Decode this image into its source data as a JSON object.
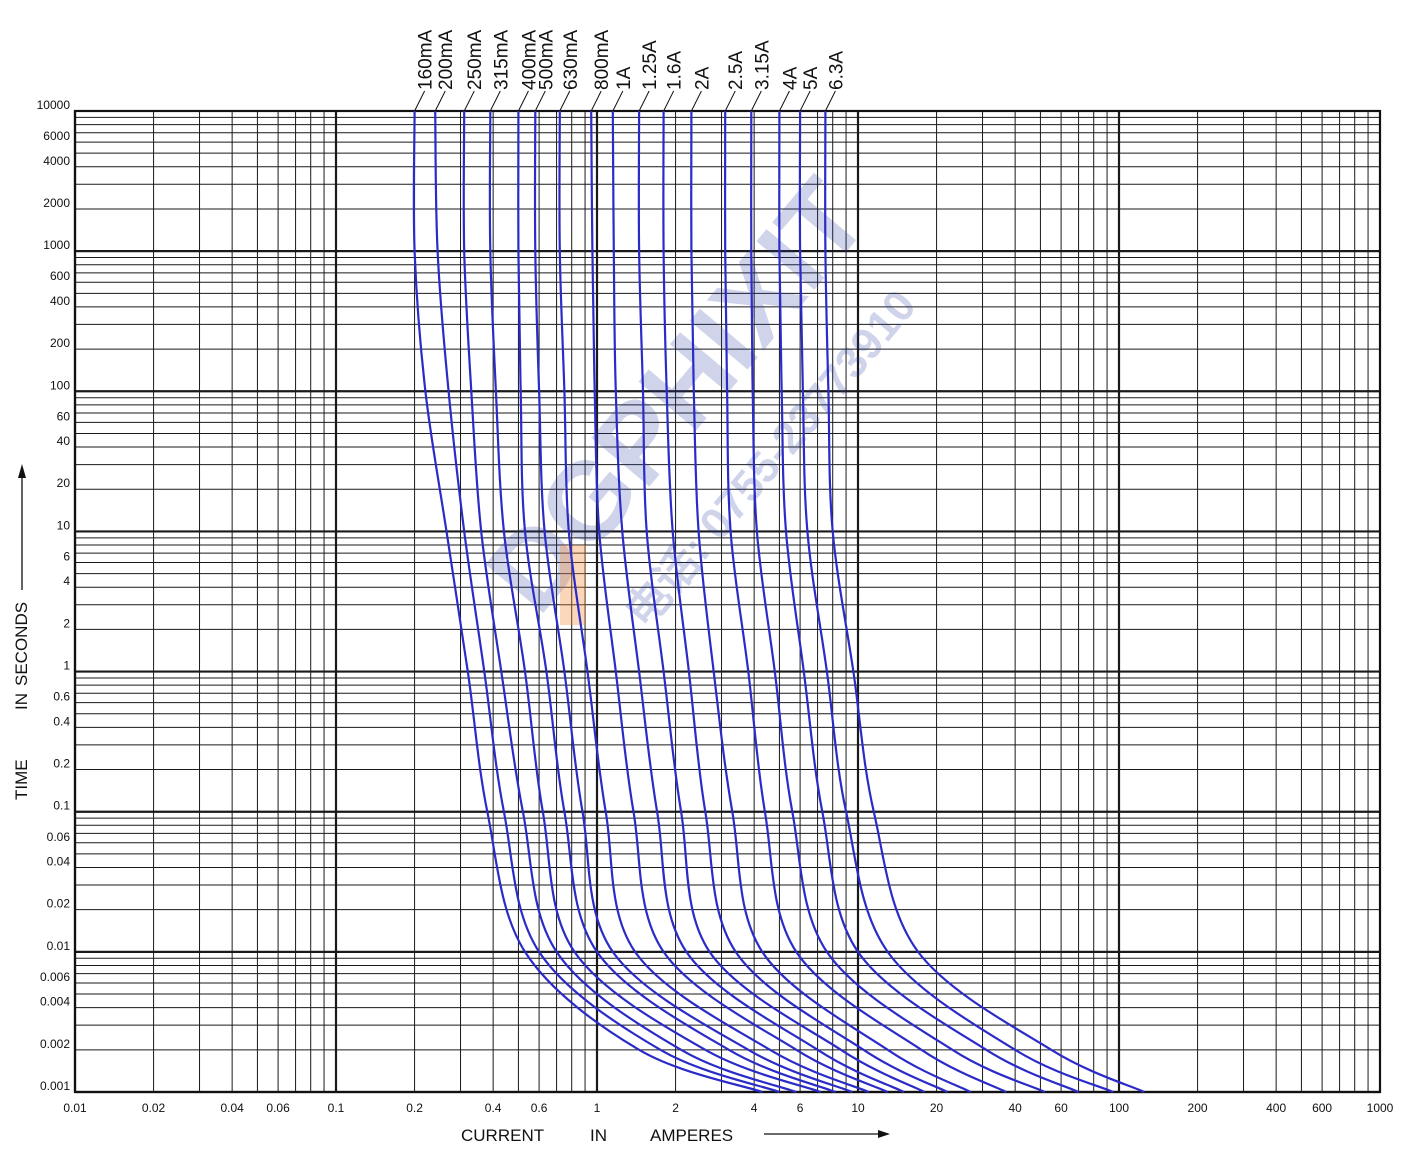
{
  "chart_data": {
    "type": "line",
    "title": "",
    "xlabel": {
      "parts": [
        "CURRENT",
        "IN",
        "AMPERES"
      ]
    },
    "ylabel": {
      "parts": [
        "TIME",
        "IN",
        "SECONDS"
      ]
    },
    "x_scale": "log",
    "y_scale": "log",
    "xlim": [
      0.01,
      1000
    ],
    "ylim": [
      0.001,
      10000
    ],
    "x_ticks": [
      {
        "v": 0.01,
        "t": "0.01"
      },
      {
        "v": 0.02,
        "t": "0.02"
      },
      {
        "v": 0.04,
        "t": "0.04"
      },
      {
        "v": 0.06,
        "t": "0.06"
      },
      {
        "v": 0.1,
        "t": "0.1"
      },
      {
        "v": 0.2,
        "t": "0.2"
      },
      {
        "v": 0.4,
        "t": "0.4"
      },
      {
        "v": 0.6,
        "t": "0.6"
      },
      {
        "v": 1,
        "t": "1"
      },
      {
        "v": 2,
        "t": "2"
      },
      {
        "v": 4,
        "t": "4"
      },
      {
        "v": 6,
        "t": "6"
      },
      {
        "v": 10,
        "t": "10"
      },
      {
        "v": 20,
        "t": "20"
      },
      {
        "v": 40,
        "t": "40"
      },
      {
        "v": 60,
        "t": "60"
      },
      {
        "v": 100,
        "t": "100"
      },
      {
        "v": 200,
        "t": "200"
      },
      {
        "v": 400,
        "t": "400"
      },
      {
        "v": 600,
        "t": "600"
      },
      {
        "v": 1000,
        "t": "1000"
      }
    ],
    "y_ticks": [
      {
        "v": 10000,
        "t": "10000"
      },
      {
        "v": 6000,
        "t": "6000"
      },
      {
        "v": 4000,
        "t": "4000"
      },
      {
        "v": 2000,
        "t": "2000"
      },
      {
        "v": 1000,
        "t": "1000"
      },
      {
        "v": 600,
        "t": "600"
      },
      {
        "v": 400,
        "t": "400"
      },
      {
        "v": 200,
        "t": "200"
      },
      {
        "v": 100,
        "t": "100"
      },
      {
        "v": 60,
        "t": "60"
      },
      {
        "v": 40,
        "t": "40"
      },
      {
        "v": 20,
        "t": "20"
      },
      {
        "v": 10,
        "t": "10"
      },
      {
        "v": 6,
        "t": "6"
      },
      {
        "v": 4,
        "t": "4"
      },
      {
        "v": 2,
        "t": "2"
      },
      {
        "v": 1,
        "t": "1"
      },
      {
        "v": 0.6,
        "t": "0.6"
      },
      {
        "v": 0.4,
        "t": "0.4"
      },
      {
        "v": 0.2,
        "t": "0.2"
      },
      {
        "v": 0.1,
        "t": "0.1"
      },
      {
        "v": 0.06,
        "t": "0.06"
      },
      {
        "v": 0.04,
        "t": "0.04"
      },
      {
        "v": 0.02,
        "t": "0.02"
      },
      {
        "v": 0.01,
        "t": "0.01"
      },
      {
        "v": 0.006,
        "t": "0.006"
      },
      {
        "v": 0.004,
        "t": "0.004"
      },
      {
        "v": 0.002,
        "t": "0.002"
      },
      {
        "v": 0.001,
        "t": "0.001"
      }
    ],
    "grid": true,
    "line_color": "#2b2bc8",
    "series": [
      {
        "name": "160mA",
        "points": [
          [
            0.2,
            10000
          ],
          [
            0.2,
            1000
          ],
          [
            0.22,
            100
          ],
          [
            0.265,
            10
          ],
          [
            0.32,
            1
          ],
          [
            0.38,
            0.1
          ],
          [
            0.53,
            0.01
          ],
          [
            1.45,
            0.002
          ],
          [
            4.3,
            0.001
          ]
        ]
      },
      {
        "name": "200mA",
        "points": [
          [
            0.24,
            10000
          ],
          [
            0.245,
            1000
          ],
          [
            0.27,
            100
          ],
          [
            0.31,
            10
          ],
          [
            0.37,
            1
          ],
          [
            0.44,
            0.1
          ],
          [
            0.6,
            0.01
          ],
          [
            1.75,
            0.002
          ],
          [
            5.0,
            0.001
          ]
        ]
      },
      {
        "name": "250mA",
        "points": [
          [
            0.31,
            10000
          ],
          [
            0.31,
            1000
          ],
          [
            0.33,
            100
          ],
          [
            0.36,
            10
          ],
          [
            0.43,
            1
          ],
          [
            0.52,
            0.1
          ],
          [
            0.7,
            0.01
          ],
          [
            2.1,
            0.002
          ],
          [
            5.8,
            0.001
          ]
        ]
      },
      {
        "name": "315mA",
        "points": [
          [
            0.39,
            10000
          ],
          [
            0.39,
            1000
          ],
          [
            0.41,
            100
          ],
          [
            0.44,
            10
          ],
          [
            0.53,
            1
          ],
          [
            0.62,
            0.1
          ],
          [
            0.82,
            0.01
          ],
          [
            2.6,
            0.002
          ],
          [
            7.2,
            0.001
          ]
        ]
      },
      {
        "name": "400mA",
        "points": [
          [
            0.5,
            10000
          ],
          [
            0.5,
            1000
          ],
          [
            0.51,
            100
          ],
          [
            0.53,
            10
          ],
          [
            0.64,
            1
          ],
          [
            0.75,
            0.1
          ],
          [
            1.0,
            0.01
          ],
          [
            3.2,
            0.002
          ],
          [
            8.2,
            0.001
          ]
        ]
      },
      {
        "name": "500mA",
        "points": [
          [
            0.58,
            10000
          ],
          [
            0.58,
            1000
          ],
          [
            0.6,
            100
          ],
          [
            0.63,
            10
          ],
          [
            0.75,
            1
          ],
          [
            0.88,
            0.1
          ],
          [
            1.15,
            0.01
          ],
          [
            3.8,
            0.002
          ],
          [
            9.5,
            0.001
          ]
        ]
      },
      {
        "name": "630mA",
        "points": [
          [
            0.72,
            10000
          ],
          [
            0.72,
            1000
          ],
          [
            0.75,
            100
          ],
          [
            0.78,
            10
          ],
          [
            0.92,
            1
          ],
          [
            1.08,
            0.1
          ],
          [
            1.4,
            0.01
          ],
          [
            4.6,
            0.002
          ],
          [
            11,
            0.001
          ]
        ]
      },
      {
        "name": "800mA",
        "points": [
          [
            0.95,
            10000
          ],
          [
            0.96,
            1000
          ],
          [
            0.98,
            100
          ],
          [
            1.02,
            10
          ],
          [
            1.18,
            1
          ],
          [
            1.38,
            0.1
          ],
          [
            1.8,
            0.01
          ],
          [
            5.8,
            0.002
          ],
          [
            13,
            0.001
          ]
        ]
      },
      {
        "name": "1A",
        "points": [
          [
            1.15,
            10000
          ],
          [
            1.16,
            1000
          ],
          [
            1.18,
            100
          ],
          [
            1.25,
            10
          ],
          [
            1.45,
            1
          ],
          [
            1.7,
            0.1
          ],
          [
            2.2,
            0.01
          ],
          [
            7.0,
            0.002
          ],
          [
            15,
            0.001
          ]
        ]
      },
      {
        "name": "1.25A",
        "points": [
          [
            1.45,
            10000
          ],
          [
            1.45,
            1000
          ],
          [
            1.5,
            100
          ],
          [
            1.55,
            10
          ],
          [
            1.8,
            1
          ],
          [
            2.1,
            0.1
          ],
          [
            2.7,
            0.01
          ],
          [
            8.6,
            0.002
          ],
          [
            18,
            0.001
          ]
        ]
      },
      {
        "name": "1.6A",
        "points": [
          [
            1.8,
            10000
          ],
          [
            1.8,
            1000
          ],
          [
            1.85,
            100
          ],
          [
            1.95,
            10
          ],
          [
            2.25,
            1
          ],
          [
            2.6,
            0.1
          ],
          [
            3.4,
            0.01
          ],
          [
            10.5,
            0.002
          ],
          [
            22,
            0.001
          ]
        ]
      },
      {
        "name": "2A",
        "points": [
          [
            2.3,
            10000
          ],
          [
            2.3,
            1000
          ],
          [
            2.35,
            100
          ],
          [
            2.45,
            10
          ],
          [
            2.8,
            1
          ],
          [
            3.3,
            0.1
          ],
          [
            4.3,
            0.01
          ],
          [
            13,
            0.002
          ],
          [
            27,
            0.001
          ]
        ]
      },
      {
        "name": "2.5A",
        "points": [
          [
            3.1,
            10000
          ],
          [
            3.1,
            1000
          ],
          [
            3.15,
            100
          ],
          [
            3.25,
            10
          ],
          [
            3.8,
            1
          ],
          [
            4.4,
            0.1
          ],
          [
            5.8,
            0.01
          ],
          [
            17.5,
            0.002
          ],
          [
            37,
            0.001
          ]
        ]
      },
      {
        "name": "3.15A",
        "points": [
          [
            3.9,
            10000
          ],
          [
            3.9,
            1000
          ],
          [
            3.95,
            100
          ],
          [
            4.1,
            10
          ],
          [
            4.8,
            1
          ],
          [
            5.6,
            0.1
          ],
          [
            7.6,
            0.01
          ],
          [
            23,
            0.002
          ],
          [
            52,
            0.001
          ]
        ]
      },
      {
        "name": "4A",
        "points": [
          [
            5.0,
            10000
          ],
          [
            5.0,
            1000
          ],
          [
            5.1,
            100
          ],
          [
            5.3,
            10
          ],
          [
            6.2,
            1
          ],
          [
            7.3,
            0.1
          ],
          [
            10,
            0.01
          ],
          [
            31,
            0.002
          ],
          [
            70,
            0.001
          ]
        ]
      },
      {
        "name": "5A",
        "points": [
          [
            6.0,
            10000
          ],
          [
            6.0,
            1000
          ],
          [
            6.15,
            100
          ],
          [
            6.4,
            10
          ],
          [
            7.6,
            1
          ],
          [
            9.0,
            0.1
          ],
          [
            13,
            0.01
          ],
          [
            40,
            0.002
          ],
          [
            95,
            0.001
          ]
        ]
      },
      {
        "name": "6.3A",
        "points": [
          [
            7.5,
            10000
          ],
          [
            7.5,
            1000
          ],
          [
            7.7,
            100
          ],
          [
            8.0,
            10
          ],
          [
            9.6,
            1
          ],
          [
            11.5,
            0.1
          ],
          [
            17,
            0.01
          ],
          [
            55,
            0.002
          ],
          [
            125,
            0.001
          ]
        ]
      }
    ]
  },
  "watermark": {
    "text": "DGPHIXIT",
    "phone": "电话: 0755-23773910",
    "color": "#2d3fa8",
    "accent_color": "#f08a3c"
  }
}
